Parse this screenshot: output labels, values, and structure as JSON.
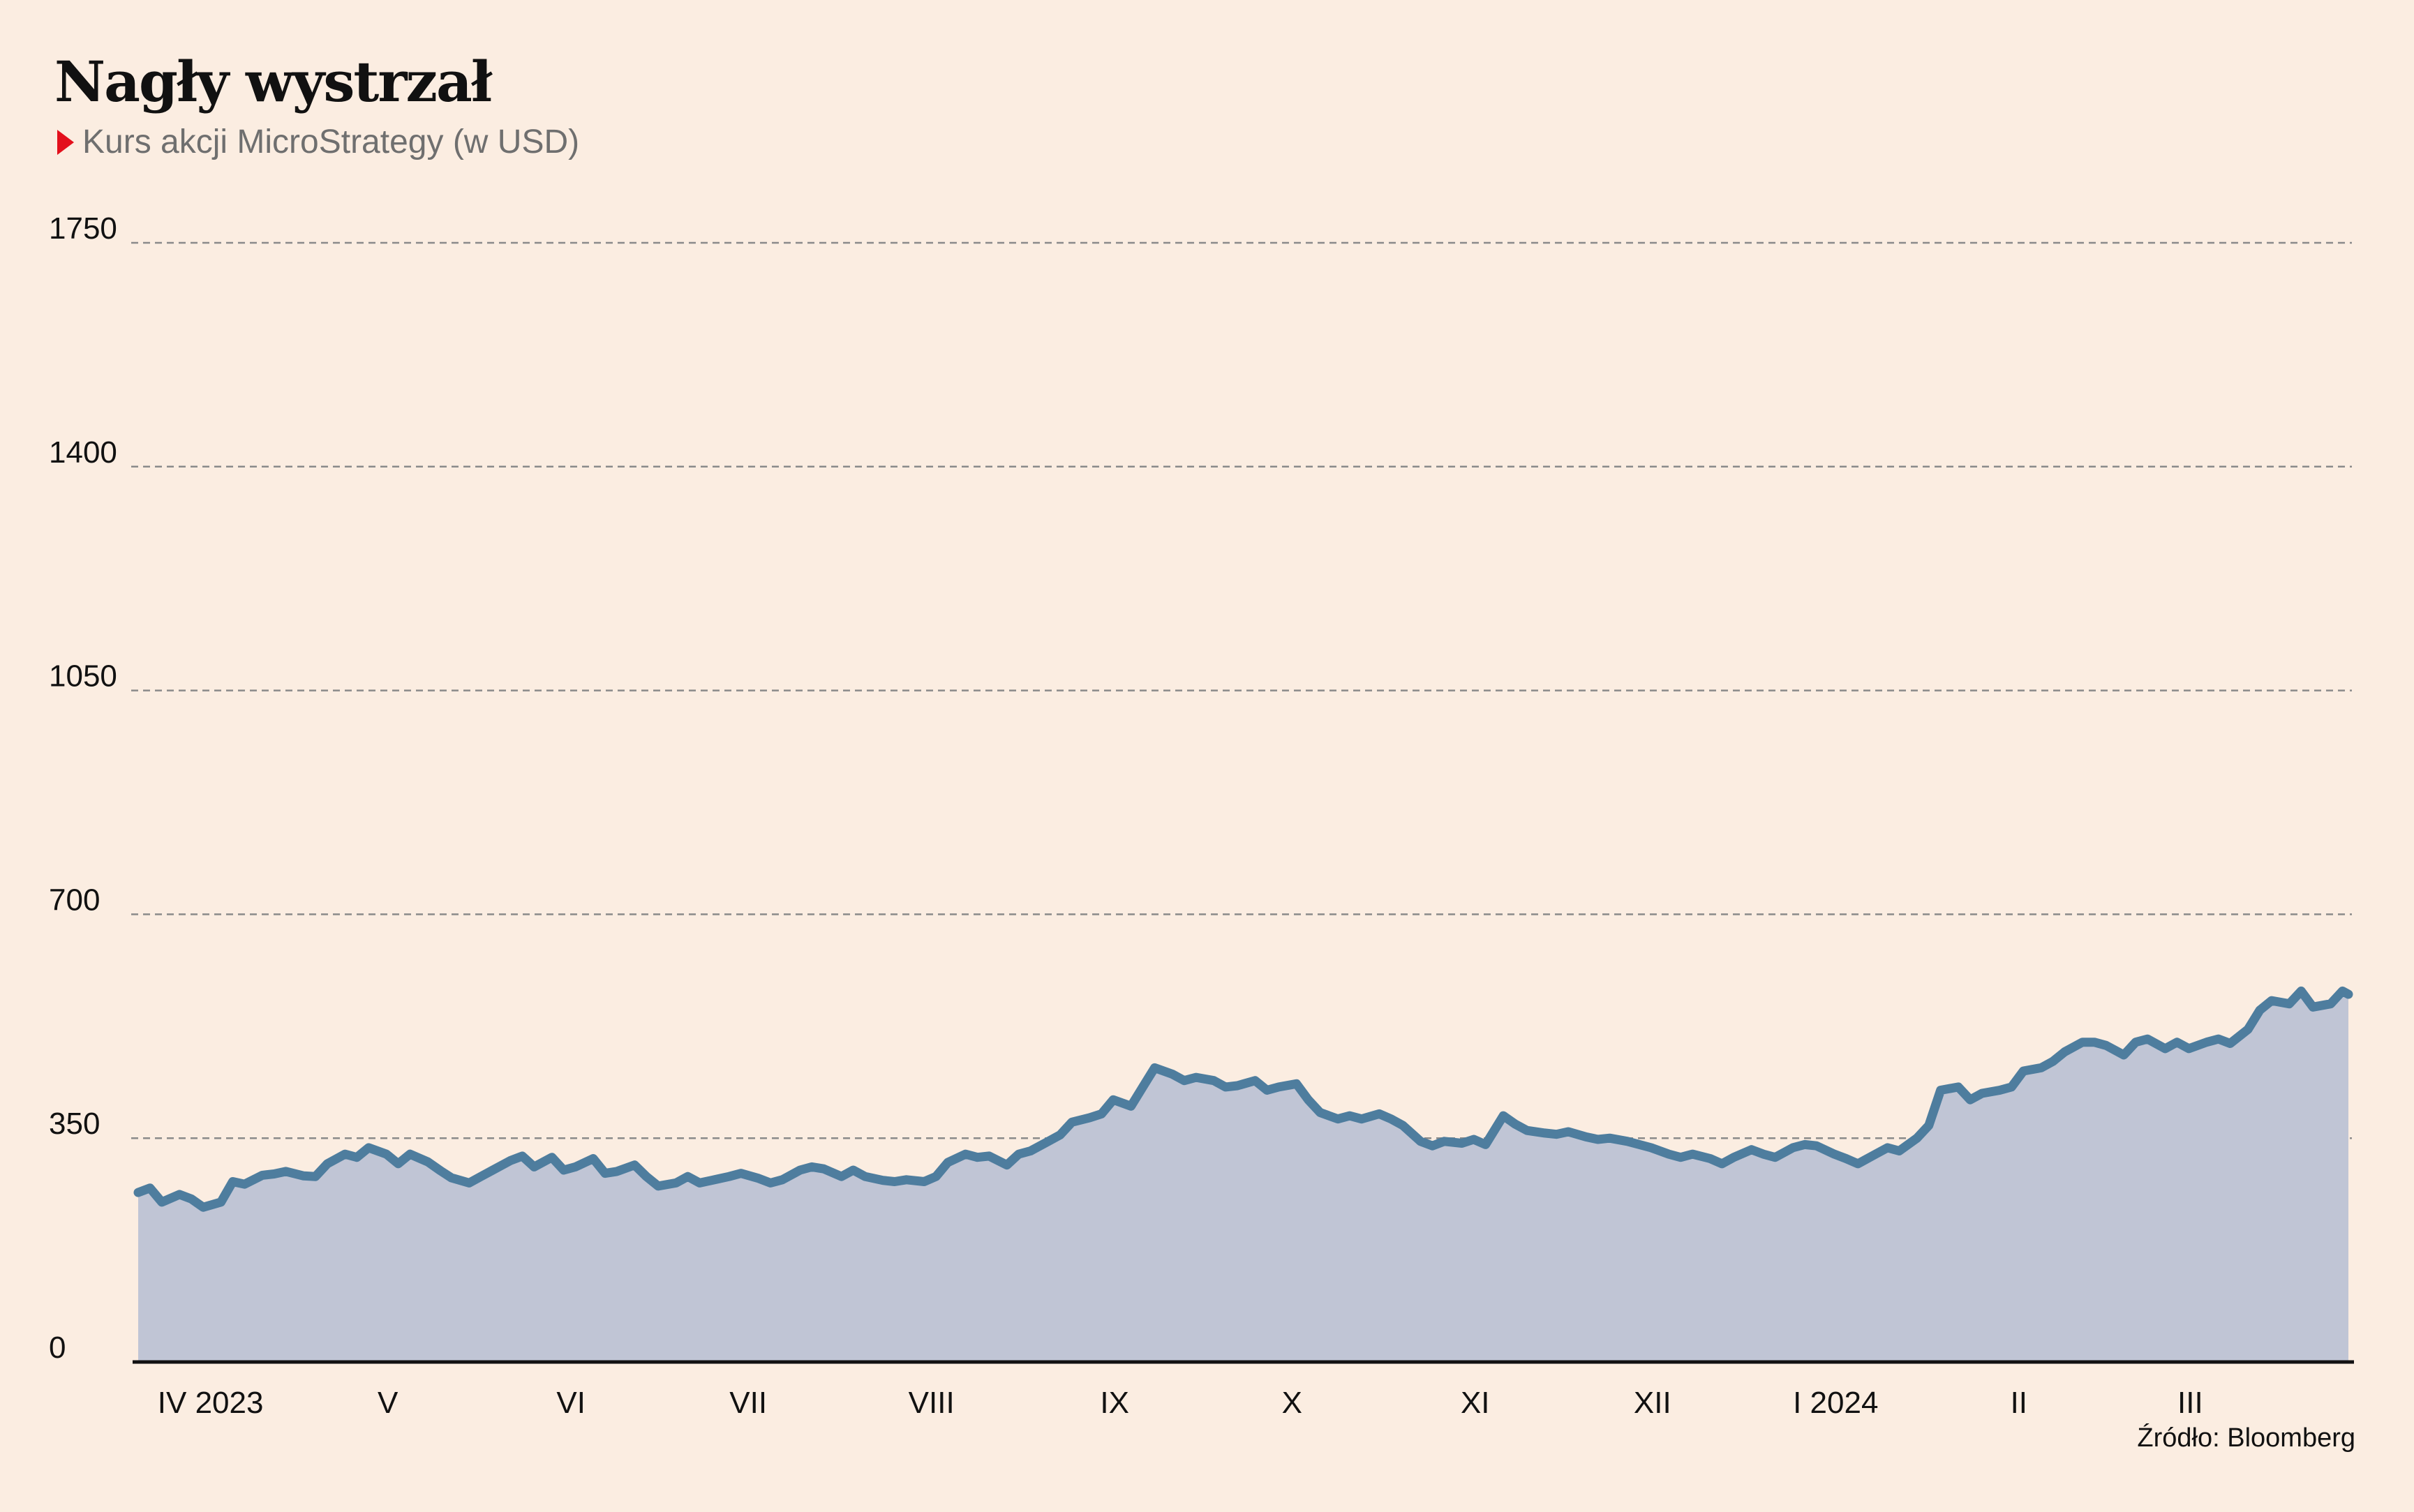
{
  "title": "Nagły wystrzał",
  "subtitle": "Kurs akcji MicroStrategy (w USD)",
  "source": "Źródło: Bloomberg",
  "colors": {
    "background": "#fbede1",
    "area_fill": "#c0c5d5",
    "line": "#4e7d9e",
    "marker": "#e3101c",
    "grid": "#8a8a8a",
    "text": "#111111"
  },
  "chart_data": {
    "type": "area",
    "title": "Nagły wystrzał",
    "subtitle": "Kurs akcji MicroStrategy (w USD)",
    "xlabel": "",
    "ylabel": "",
    "ylim": [
      0,
      1750
    ],
    "yticks": [
      0,
      350,
      700,
      1050,
      1400,
      1750
    ],
    "grid": "horizontal dashed",
    "legend": "none",
    "x_ticks": [
      {
        "label": "IV 2023",
        "date": "2023-04-01"
      },
      {
        "label": "V",
        "date": "2023-05-01"
      },
      {
        "label": "VI",
        "date": "2023-06-01"
      },
      {
        "label": "VII",
        "date": "2023-07-01"
      },
      {
        "label": "VIII",
        "date": "2023-08-01"
      },
      {
        "label": "IX",
        "date": "2023-09-01"
      },
      {
        "label": "X",
        "date": "2023-10-01"
      },
      {
        "label": "XI",
        "date": "2023-11-01"
      },
      {
        "label": "XII",
        "date": "2023-12-01"
      },
      {
        "label": "I 2024",
        "date": "2024-01-01"
      },
      {
        "label": "II",
        "date": "2024-02-01"
      },
      {
        "label": "III",
        "date": "2024-03-01"
      }
    ],
    "x_range": [
      "2023-03-20",
      "2024-03-28"
    ],
    "series": [
      {
        "name": "",
        "points": [
          [
            "2023-03-20",
            265
          ],
          [
            "2023-03-22",
            272
          ],
          [
            "2023-03-24",
            250
          ],
          [
            "2023-03-27",
            262
          ],
          [
            "2023-03-29",
            255
          ],
          [
            "2023-03-31",
            242
          ],
          [
            "2023-04-03",
            250
          ],
          [
            "2023-04-05",
            282
          ],
          [
            "2023-04-07",
            278
          ],
          [
            "2023-04-10",
            292
          ],
          [
            "2023-04-12",
            294
          ],
          [
            "2023-04-14",
            298
          ],
          [
            "2023-04-17",
            291
          ],
          [
            "2023-04-19",
            290
          ],
          [
            "2023-04-21",
            310
          ],
          [
            "2023-04-24",
            325
          ],
          [
            "2023-04-26",
            320
          ],
          [
            "2023-04-28",
            335
          ],
          [
            "2023-05-01",
            325
          ],
          [
            "2023-05-03",
            310
          ],
          [
            "2023-05-05",
            325
          ],
          [
            "2023-05-08",
            313
          ],
          [
            "2023-05-10",
            300
          ],
          [
            "2023-05-12",
            288
          ],
          [
            "2023-05-15",
            280
          ],
          [
            "2023-05-17",
            290
          ],
          [
            "2023-05-19",
            300
          ],
          [
            "2023-05-22",
            315
          ],
          [
            "2023-05-24",
            322
          ],
          [
            "2023-05-26",
            305
          ],
          [
            "2023-05-29",
            320
          ],
          [
            "2023-05-31",
            300
          ],
          [
            "2023-06-02",
            305
          ],
          [
            "2023-06-05",
            318
          ],
          [
            "2023-06-07",
            295
          ],
          [
            "2023-06-09",
            298
          ],
          [
            "2023-06-12",
            308
          ],
          [
            "2023-06-14",
            290
          ],
          [
            "2023-06-16",
            275
          ],
          [
            "2023-06-19",
            280
          ],
          [
            "2023-06-21",
            290
          ],
          [
            "2023-06-23",
            280
          ],
          [
            "2023-06-26",
            286
          ],
          [
            "2023-06-28",
            290
          ],
          [
            "2023-06-30",
            295
          ],
          [
            "2023-07-03",
            287
          ],
          [
            "2023-07-05",
            280
          ],
          [
            "2023-07-07",
            285
          ],
          [
            "2023-07-10",
            300
          ],
          [
            "2023-07-12",
            305
          ],
          [
            "2023-07-14",
            302
          ],
          [
            "2023-07-17",
            290
          ],
          [
            "2023-07-19",
            300
          ],
          [
            "2023-07-21",
            290
          ],
          [
            "2023-07-24",
            284
          ],
          [
            "2023-07-26",
            282
          ],
          [
            "2023-07-28",
            285
          ],
          [
            "2023-07-31",
            282
          ],
          [
            "2023-08-02",
            290
          ],
          [
            "2023-08-04",
            312
          ],
          [
            "2023-08-07",
            325
          ],
          [
            "2023-08-09",
            320
          ],
          [
            "2023-08-11",
            322
          ],
          [
            "2023-08-14",
            308
          ],
          [
            "2023-08-16",
            325
          ],
          [
            "2023-08-18",
            330
          ],
          [
            "2023-08-21",
            345
          ],
          [
            "2023-08-23",
            355
          ],
          [
            "2023-08-25",
            375
          ],
          [
            "2023-08-28",
            382
          ],
          [
            "2023-08-30",
            388
          ],
          [
            "2023-09-01",
            410
          ],
          [
            "2023-09-04",
            400
          ],
          [
            "2023-09-06",
            430
          ],
          [
            "2023-09-08",
            460
          ],
          [
            "2023-09-11",
            450
          ],
          [
            "2023-09-13",
            440
          ],
          [
            "2023-09-15",
            445
          ],
          [
            "2023-09-18",
            440
          ],
          [
            "2023-09-20",
            430
          ],
          [
            "2023-09-22",
            432
          ],
          [
            "2023-09-25",
            440
          ],
          [
            "2023-09-27",
            425
          ],
          [
            "2023-09-29",
            430
          ],
          [
            "2023-10-02",
            435
          ],
          [
            "2023-10-04",
            410
          ],
          [
            "2023-10-06",
            390
          ],
          [
            "2023-10-09",
            380
          ],
          [
            "2023-10-11",
            385
          ],
          [
            "2023-10-13",
            380
          ],
          [
            "2023-10-16",
            388
          ],
          [
            "2023-10-18",
            380
          ],
          [
            "2023-10-20",
            370
          ],
          [
            "2023-10-23",
            345
          ],
          [
            "2023-10-25",
            338
          ],
          [
            "2023-10-27",
            345
          ],
          [
            "2023-10-30",
            342
          ],
          [
            "2023-11-01",
            348
          ],
          [
            "2023-11-03",
            340
          ],
          [
            "2023-11-06",
            385
          ],
          [
            "2023-11-08",
            372
          ],
          [
            "2023-11-10",
            362
          ],
          [
            "2023-11-13",
            358
          ],
          [
            "2023-11-15",
            356
          ],
          [
            "2023-11-17",
            360
          ],
          [
            "2023-11-20",
            352
          ],
          [
            "2023-11-22",
            348
          ],
          [
            "2023-11-24",
            350
          ],
          [
            "2023-11-27",
            345
          ],
          [
            "2023-11-29",
            340
          ],
          [
            "2023-12-01",
            335
          ],
          [
            "2023-12-04",
            325
          ],
          [
            "2023-12-06",
            320
          ],
          [
            "2023-12-08",
            325
          ],
          [
            "2023-12-11",
            318
          ],
          [
            "2023-12-13",
            310
          ],
          [
            "2023-12-15",
            320
          ],
          [
            "2023-12-18",
            332
          ],
          [
            "2023-12-20",
            325
          ],
          [
            "2023-12-22",
            320
          ],
          [
            "2023-12-25",
            335
          ],
          [
            "2023-12-27",
            340
          ],
          [
            "2023-12-29",
            338
          ],
          [
            "2024-01-01",
            325
          ],
          [
            "2024-01-03",
            318
          ],
          [
            "2024-01-05",
            310
          ],
          [
            "2024-01-08",
            325
          ],
          [
            "2024-01-10",
            335
          ],
          [
            "2024-01-12",
            330
          ],
          [
            "2024-01-15",
            350
          ],
          [
            "2024-01-17",
            370
          ],
          [
            "2024-01-19",
            425
          ],
          [
            "2024-01-22",
            430
          ],
          [
            "2024-01-24",
            410
          ],
          [
            "2024-01-26",
            420
          ],
          [
            "2024-01-29",
            425
          ],
          [
            "2024-01-31",
            430
          ],
          [
            "2024-02-02",
            455
          ],
          [
            "2024-02-05",
            460
          ],
          [
            "2024-02-07",
            470
          ],
          [
            "2024-02-09",
            485
          ],
          [
            "2024-02-12",
            500
          ],
          [
            "2024-02-14",
            500
          ],
          [
            "2024-02-16",
            495
          ],
          [
            "2024-02-19",
            480
          ],
          [
            "2024-02-21",
            500
          ],
          [
            "2024-02-23",
            505
          ],
          [
            "2024-02-26",
            490
          ],
          [
            "2024-02-28",
            500
          ],
          [
            "2024-03-01",
            490
          ],
          [
            "2024-03-04",
            500
          ],
          [
            "2024-03-06",
            505
          ],
          [
            "2024-03-08",
            498
          ],
          [
            "2024-03-11",
            520
          ],
          [
            "2024-03-13",
            550
          ],
          [
            "2024-03-15",
            565
          ],
          [
            "2024-03-18",
            560
          ],
          [
            "2024-03-20",
            580
          ],
          [
            "2024-03-22",
            555
          ],
          [
            "2024-03-25",
            560
          ],
          [
            "2024-03-27",
            580
          ],
          [
            "2024-03-28",
            575
          ]
        ]
      }
    ]
  }
}
